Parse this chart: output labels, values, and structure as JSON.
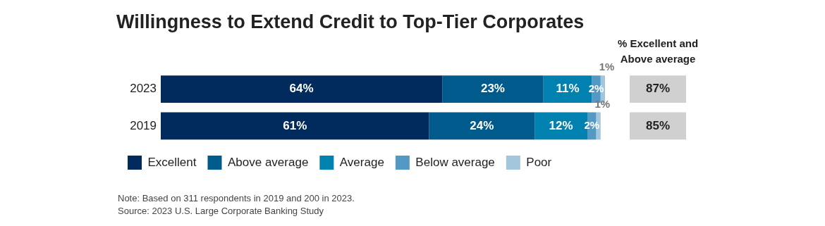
{
  "chart_data": {
    "type": "bar",
    "orientation": "horizontal",
    "stacked": true,
    "title": "Willingness to Extend Credit to Top-Tier Corporates",
    "categories": [
      "2023",
      "2019"
    ],
    "tick_labels": "y",
    "legend": "bottom",
    "series": [
      {
        "name": "Excellent",
        "color": "#002b5c",
        "values": [
          64,
          61
        ],
        "value_labels": [
          "64%",
          "61%"
        ]
      },
      {
        "name": "Above average",
        "color": "#005a8c",
        "values": [
          23,
          24
        ],
        "value_labels": [
          "23%",
          "24%"
        ]
      },
      {
        "name": "Average",
        "color": "#0081b0",
        "values": [
          11,
          12
        ],
        "value_labels": [
          "11%",
          "12%"
        ]
      },
      {
        "name": "Below average",
        "color": "#5499c4",
        "values": [
          2,
          2
        ],
        "value_labels": [
          "2%",
          "2%"
        ]
      },
      {
        "name": "Poor",
        "color": "#a3c6dd",
        "values": [
          1,
          1
        ],
        "value_labels": [
          "1%",
          "1%"
        ]
      }
    ],
    "annotations": [
      "% Excellent and Above average",
      "87%",
      "85%",
      "Note: Based on 311 respondents in 2019 and 200 in 2023.",
      "Source: 2023 U.S. Large Corporate Banking Study"
    ]
  }
}
